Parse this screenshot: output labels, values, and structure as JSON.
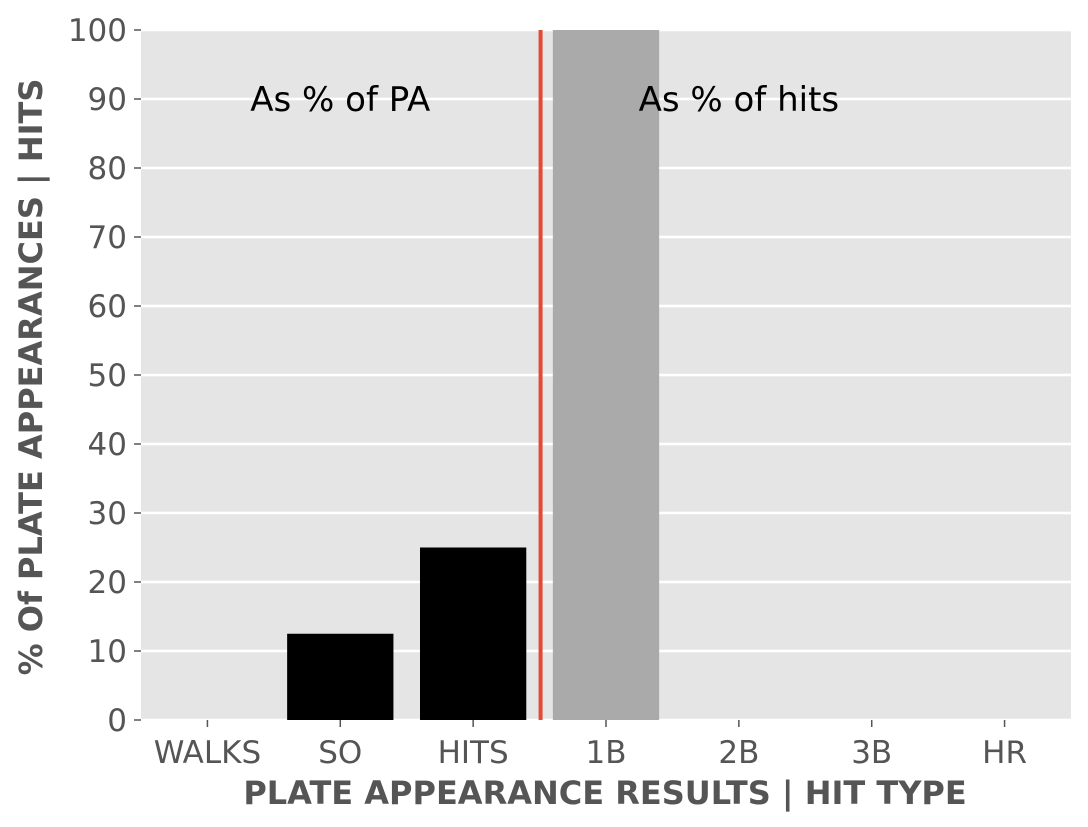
{
  "chart_data": {
    "type": "bar",
    "categories": [
      "WALKS",
      "SO",
      "HITS",
      "1B",
      "2B",
      "3B",
      "HR"
    ],
    "values": [
      0,
      12.5,
      25,
      100,
      0,
      0,
      0
    ],
    "bar_colors": [
      "#000000",
      "#000000",
      "#000000",
      "#aaaaaa",
      "#aaaaaa",
      "#aaaaaa",
      "#aaaaaa"
    ],
    "xlabel": "PLATE APPEARANCE RESULTS | HIT TYPE",
    "ylabel": "% Of PLATE APPEARANCES | HITS",
    "ylim": [
      0,
      100
    ],
    "yticks": [
      0,
      10,
      20,
      30,
      40,
      50,
      60,
      70,
      80,
      90,
      100
    ],
    "grid": true,
    "divider": {
      "x_between": [
        "HITS",
        "1B"
      ],
      "color": "#e24a33"
    },
    "annotations": [
      {
        "text": "As % of PA",
        "x_category": "SO",
        "y": 90
      },
      {
        "text": "As % of hits",
        "x_category": "2B",
        "y": 90
      }
    ],
    "colors": {
      "plot_background": "#e5e5e5",
      "grid": "#ffffff",
      "tick_text": "#555555"
    }
  }
}
